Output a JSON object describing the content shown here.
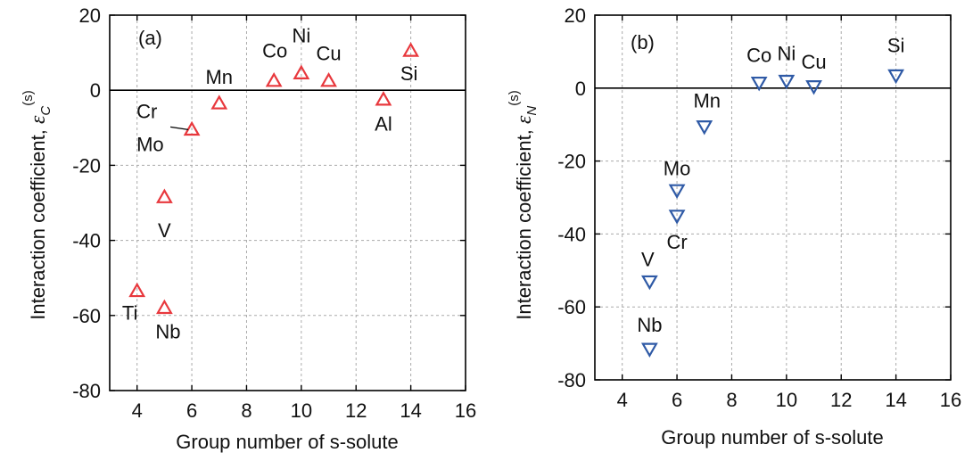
{
  "chart_data": [
    {
      "type": "scatter",
      "panel_label": "(a)",
      "xlabel": "Group number of s-solute",
      "ylabel_main": "Interaction coefficient,",
      "ylabel_symbol": "ε",
      "ylabel_sub": "C",
      "ylabel_sup": "(s)",
      "xlim": [
        3,
        16
      ],
      "ylim": [
        -80,
        20
      ],
      "xticks": [
        4,
        6,
        8,
        10,
        12,
        14,
        16
      ],
      "yticks": [
        20,
        0,
        -20,
        -40,
        -60,
        -80
      ],
      "grid": true,
      "zero_line": true,
      "marker": "triangle-up",
      "marker_color": "#e8383d",
      "points": [
        {
          "label": "Ti",
          "x": 4,
          "y": -53.5
        },
        {
          "label": "V",
          "x": 5,
          "y": -28.5
        },
        {
          "label": "Nb",
          "x": 5,
          "y": -58
        },
        {
          "label": "Cr",
          "x": 6,
          "y": -10.5
        },
        {
          "label": "Mo",
          "x": 6,
          "y": -10.5
        },
        {
          "label": "Mn",
          "x": 7,
          "y": -3.5
        },
        {
          "label": "Co",
          "x": 9,
          "y": 2.5
        },
        {
          "label": "Ni",
          "x": 10,
          "y": 4.5
        },
        {
          "label": "Cu",
          "x": 11,
          "y": 2.5
        },
        {
          "label": "Al",
          "x": 13,
          "y": -2.5
        },
        {
          "label": "Si",
          "x": 14,
          "y": 10.5
        }
      ]
    },
    {
      "type": "scatter",
      "panel_label": "(b)",
      "xlabel": "Group number of s-solute",
      "ylabel_main": "Interaction coefficient,",
      "ylabel_symbol": "ε",
      "ylabel_sub": "N",
      "ylabel_sup": "(s)",
      "xlim": [
        3,
        16
      ],
      "ylim": [
        -80,
        20
      ],
      "xticks": [
        4,
        6,
        8,
        10,
        12,
        14,
        16
      ],
      "yticks": [
        20,
        0,
        -20,
        -40,
        -60,
        -80
      ],
      "grid": true,
      "zero_line": true,
      "marker": "triangle-down",
      "marker_color": "#2f5aa6",
      "points": [
        {
          "label": "V",
          "x": 5,
          "y": -53
        },
        {
          "label": "Nb",
          "x": 5,
          "y": -71.5
        },
        {
          "label": "Mo",
          "x": 6,
          "y": -28
        },
        {
          "label": "Cr",
          "x": 6,
          "y": -35
        },
        {
          "label": "Mn",
          "x": 7,
          "y": -10.5
        },
        {
          "label": "Co",
          "x": 9,
          "y": 1.5
        },
        {
          "label": "Ni",
          "x": 10,
          "y": 2
        },
        {
          "label": "Cu",
          "x": 11,
          "y": 0.5
        },
        {
          "label": "Si",
          "x": 14,
          "y": 3.5
        }
      ]
    }
  ]
}
